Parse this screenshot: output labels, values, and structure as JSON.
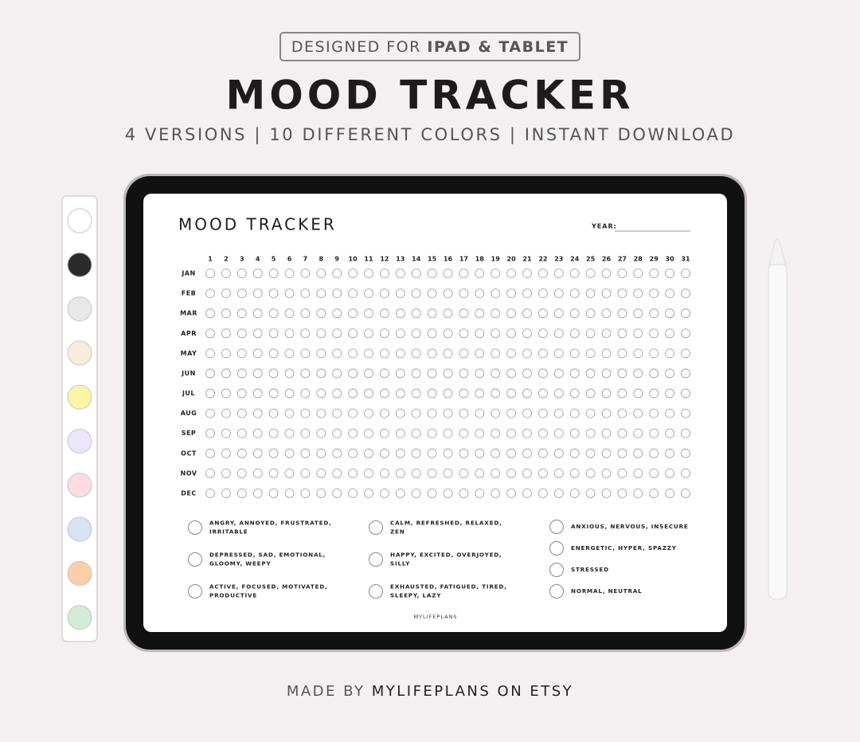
{
  "header": {
    "badge": {
      "prefix": "DESIGNED FOR",
      "emphasis": "IPAD & TABLET"
    },
    "title": "MOOD TRACKER",
    "subtitle": "4 VERSIONS | 10 DIFFERENT COLORS | INSTANT DOWNLOAD"
  },
  "palette": [
    "#ffffff",
    "#2b2b2b",
    "#e8e8e8",
    "#f7eddc",
    "#fbf5a6",
    "#ebe6fb",
    "#fbdce3",
    "#d6e4f2",
    "#fccda6",
    "#d4ecd6"
  ],
  "screen": {
    "title": "MOOD TRACKER",
    "year_label": "YEAR:",
    "days": [
      1,
      2,
      3,
      4,
      5,
      6,
      7,
      8,
      9,
      10,
      11,
      12,
      13,
      14,
      15,
      16,
      17,
      18,
      19,
      20,
      21,
      22,
      23,
      24,
      25,
      26,
      27,
      28,
      29,
      30,
      31
    ],
    "months": [
      "JAN",
      "FEB",
      "MAR",
      "APR",
      "MAY",
      "JUN",
      "JUL",
      "AUG",
      "SEP",
      "OCT",
      "NOV",
      "DEC"
    ],
    "legend": [
      [
        [
          "ANGRY, ANNOYED, FRUSTRATED,",
          "IRRITABLE"
        ],
        [
          "DEPRESSED, SAD, EMOTIONAL,",
          "GLOOMY, WEEPY"
        ],
        [
          "ACTIVE, FOCUSED, MOTIVATED,",
          "PRODUCTIVE"
        ]
      ],
      [
        [
          "CALM, REFRESHED, RELAXED,",
          "ZEN"
        ],
        [
          "HAPPY, EXCITED, OVERJOYED,",
          "SILLY"
        ],
        [
          "EXHAUSTED, FATIGUED, TIRED,",
          "SLEEPY, LAZY"
        ]
      ],
      [
        [
          "ANXIOUS, NERVOUS, INSECURE"
        ],
        [
          "ENERGETIC, HYPER, SPAZZY"
        ],
        [
          "STRESSED"
        ],
        [
          "NORMAL, NEUTRAL"
        ]
      ]
    ],
    "footer": "MYLIFEPLANS"
  },
  "footer": {
    "prefix": "MADE BY",
    "emphasis": "MYLIFEPLANS ON ETSY"
  }
}
